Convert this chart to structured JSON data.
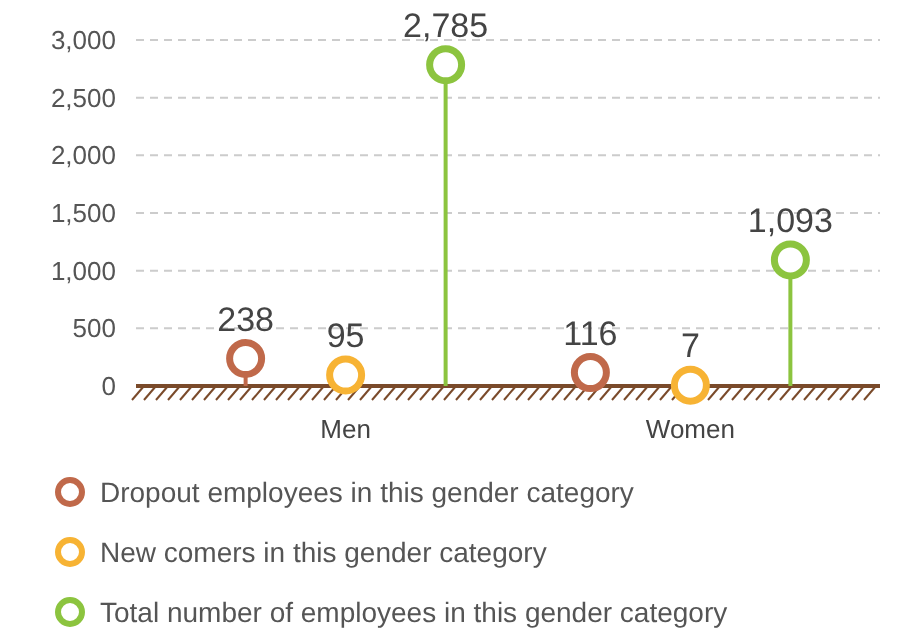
{
  "chart_data": {
    "type": "lollipop",
    "categories": [
      "Men",
      "Women"
    ],
    "series": [
      {
        "name": "Dropout employees in this gender category",
        "color": "#c0694a",
        "values": [
          238,
          116
        ],
        "value_labels": [
          "238",
          "116"
        ]
      },
      {
        "name": "New comers in this gender category",
        "color": "#f7b334",
        "values": [
          95,
          7
        ],
        "value_labels": [
          "95",
          "7"
        ]
      },
      {
        "name": "Total number of employees in this gender category",
        "color": "#8cc43f",
        "values": [
          2785,
          1093
        ],
        "value_labels": [
          "2,785",
          "1,093"
        ]
      }
    ],
    "ylim": [
      0,
      3000
    ],
    "yticks": [
      0,
      {
        "value": 500,
        "label": "500"
      },
      {
        "value": 1000,
        "label": "1,000"
      },
      {
        "value": 1500,
        "label": "1,500"
      },
      {
        "value": 2000,
        "label": "2,000"
      },
      {
        "value": 2500,
        "label": "2,500"
      },
      {
        "value": 3000,
        "label": "3,000"
      }
    ],
    "grid": "y",
    "legend": "bottom",
    "marker": "circle"
  }
}
